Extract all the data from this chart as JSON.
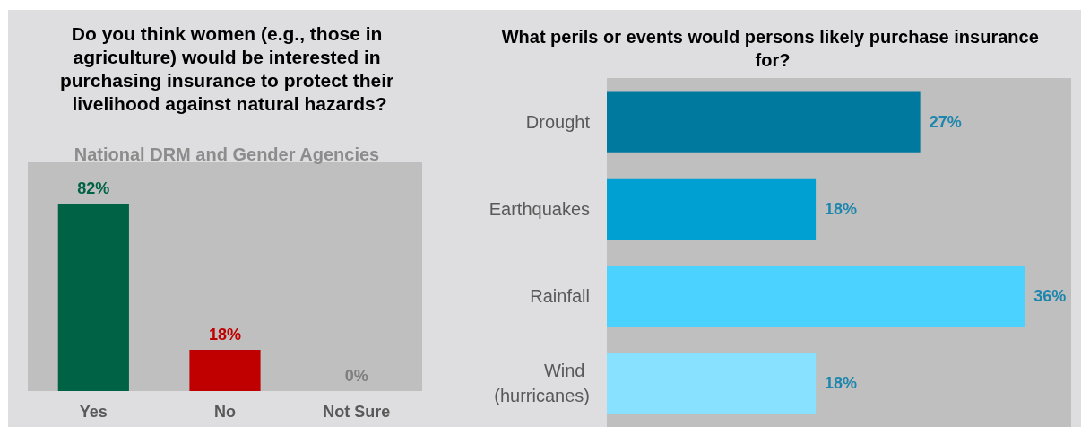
{
  "chart_data": [
    {
      "type": "bar",
      "title": "Do you think women (e.g., those in agriculture) would be interested in purchasing insurance to protect their livelihood against natural hazards?",
      "subtitle": "National DRM and Gender Agencies",
      "categories": [
        "Yes",
        "No",
        "Not Sure"
      ],
      "values": [
        82,
        18,
        0
      ],
      "colors": [
        "#006244",
        "#c00000",
        "#7f7f7f"
      ],
      "value_labels": [
        "82%",
        "18%",
        "0%"
      ],
      "ylim": [
        0,
        100
      ],
      "tick_labels": "x"
    },
    {
      "type": "bar",
      "orientation": "horizontal",
      "title": "What perils or events would persons likely purchase insurance for?",
      "categories": [
        "Drought",
        "Earthquakes",
        "Rainfall",
        "Wind (hurricanes)"
      ],
      "values": [
        27,
        18,
        36,
        18
      ],
      "colors": [
        "#00799f",
        "#00a0d2",
        "#4bd2ff",
        "#88e1ff"
      ],
      "value_labels": [
        "27%",
        "18%",
        "36%",
        "18%"
      ],
      "xlim": [
        0,
        40
      ],
      "tick_labels": "y"
    }
  ]
}
